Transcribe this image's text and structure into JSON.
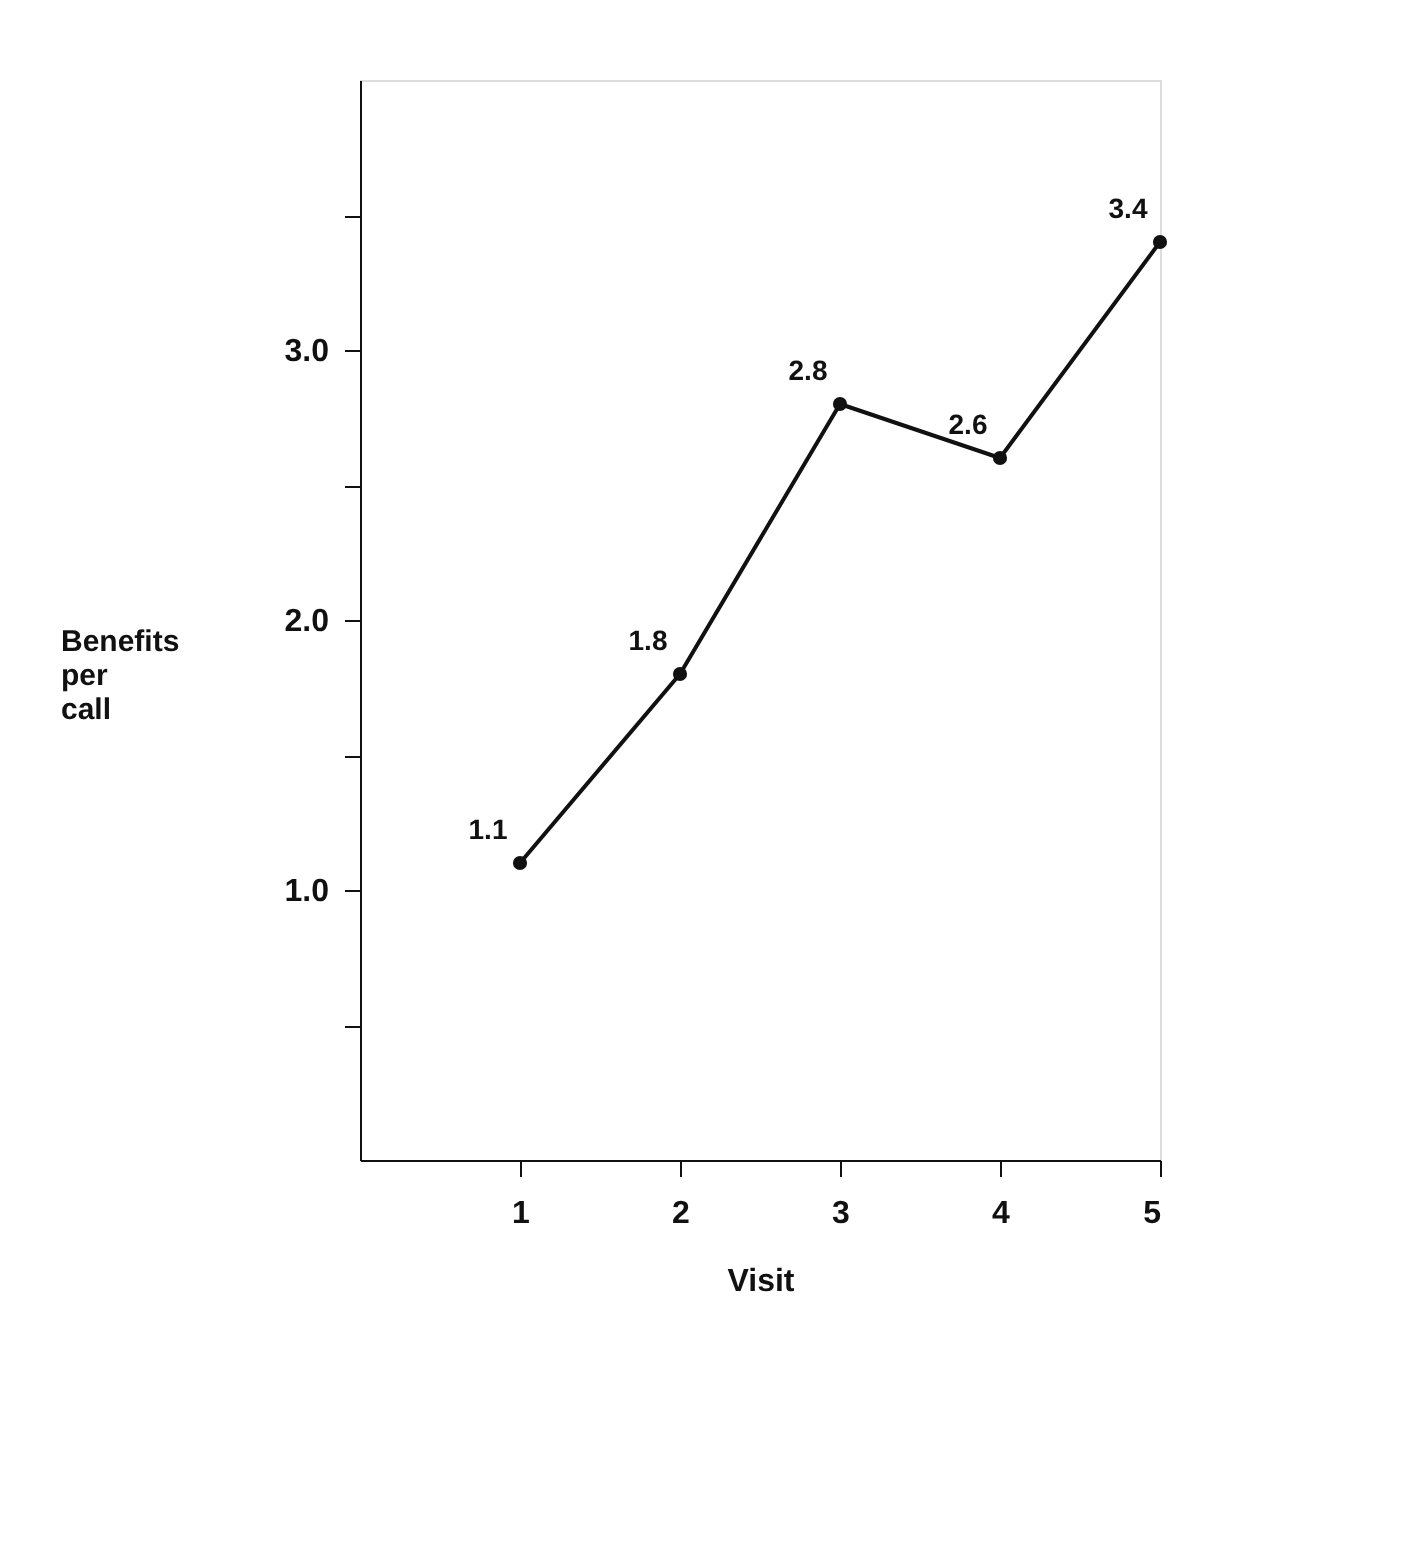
{
  "chart_data": {
    "type": "line",
    "xlabel": "Visit",
    "ylabel": "Benefits per call",
    "x": [
      1,
      2,
      3,
      4,
      5
    ],
    "values": [
      1.1,
      1.8,
      2.8,
      2.6,
      3.4
    ],
    "color": "#111111",
    "xlim": [
      0,
      5
    ],
    "xticks": [
      1,
      2,
      3,
      4,
      5
    ],
    "ylim": [
      0,
      4
    ],
    "yticks": [
      {
        "value": 0.5,
        "label": null
      },
      {
        "value": 1,
        "label": "1.0"
      },
      {
        "value": 1.5,
        "label": null
      },
      {
        "value": 2,
        "label": "2.0"
      },
      {
        "value": 2.5,
        "label": null
      },
      {
        "value": 3,
        "label": "3.0"
      },
      {
        "value": 3.5,
        "label": null
      }
    ],
    "data_labels": true,
    "marker": "circle",
    "line_style": "solid",
    "grid": false
  }
}
